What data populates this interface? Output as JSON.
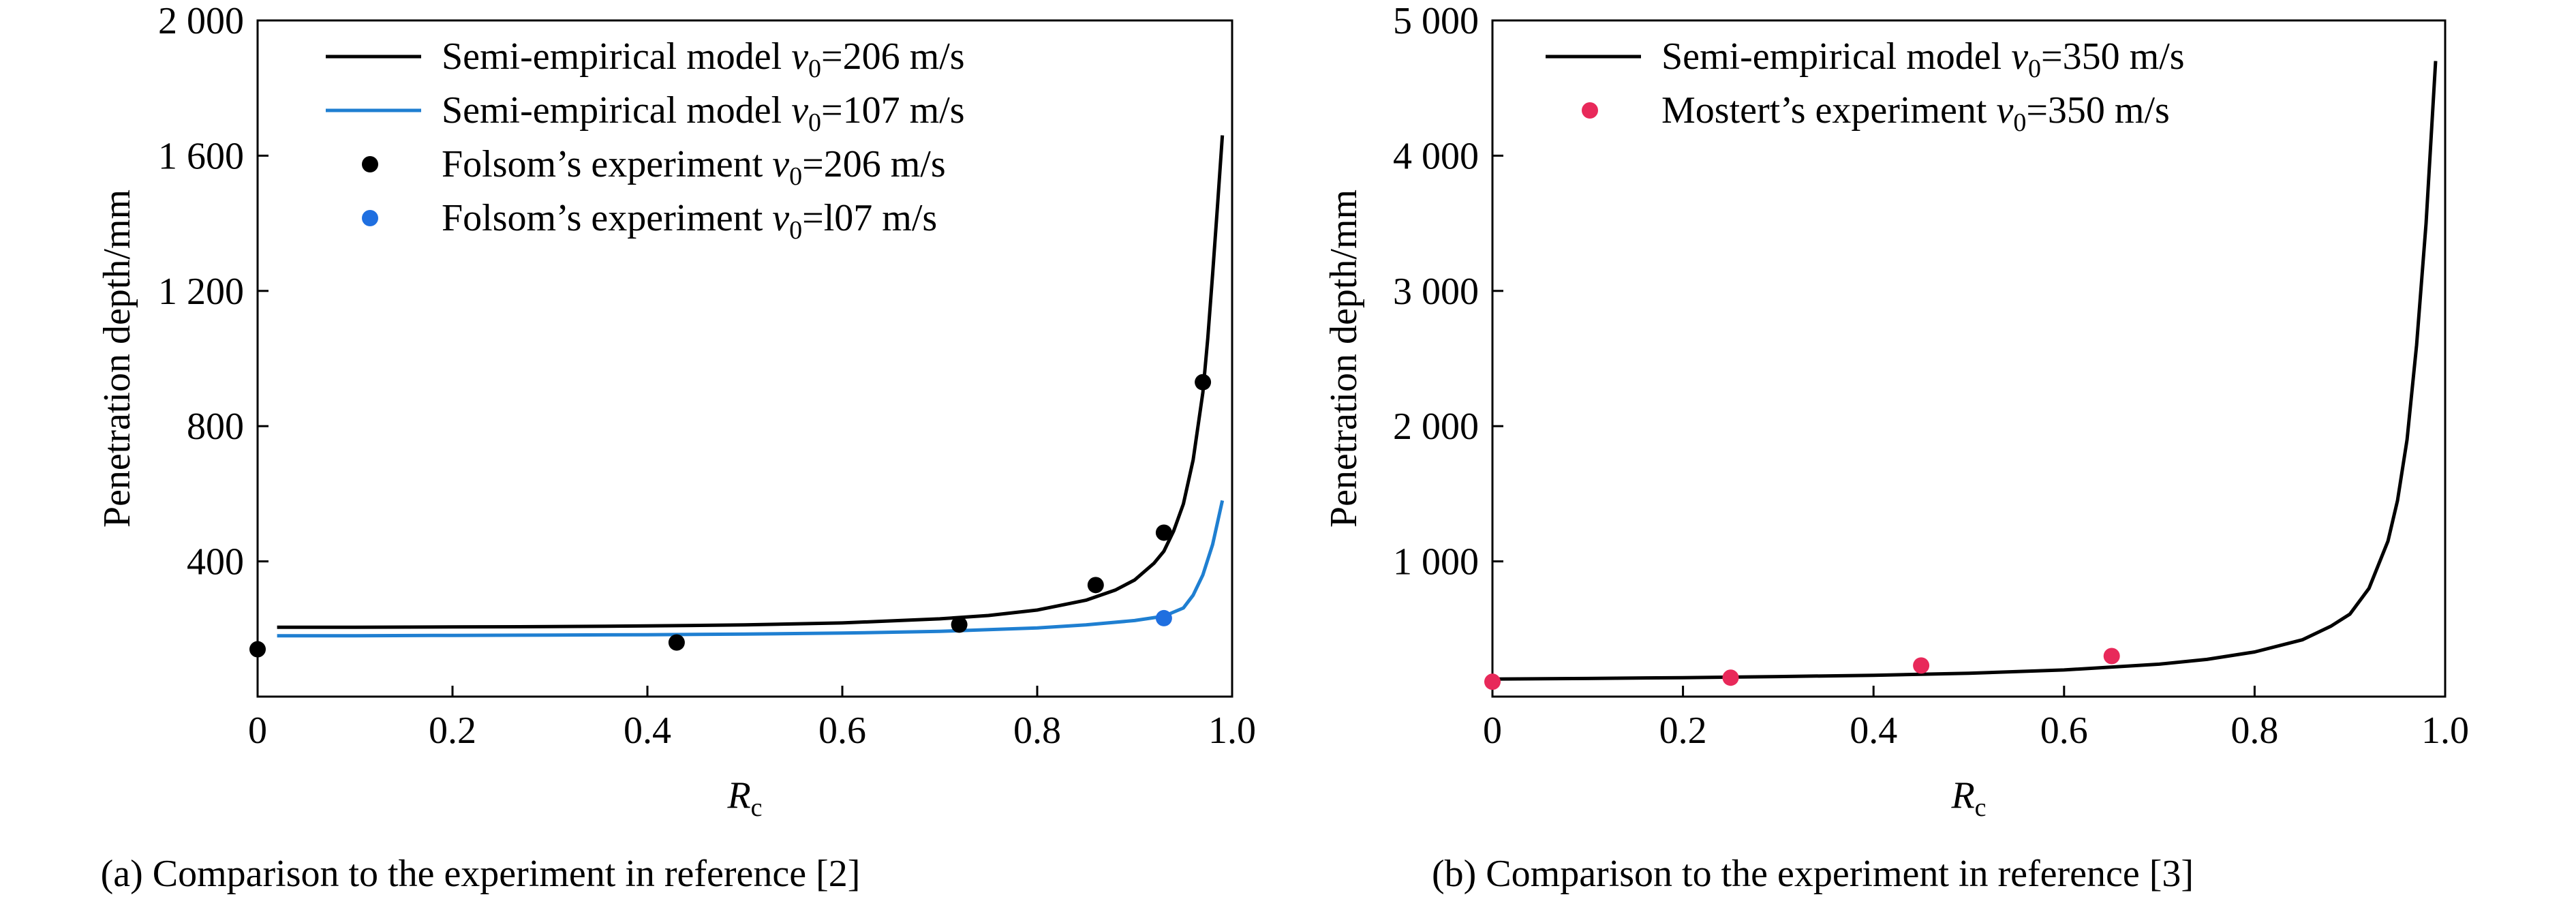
{
  "chart_data": [
    {
      "type": "line",
      "caption": "(a) Comparison to the experiment in reference [2]",
      "xlabel_main": "R",
      "xlabel_sub": "c",
      "ylabel": "Penetration depth/mm",
      "xlim": [
        0,
        1.0
      ],
      "ylim": [
        0,
        2000
      ],
      "xticks": [
        0,
        0.2,
        0.4,
        0.6,
        0.8,
        1.0
      ],
      "xtick_labels": [
        "0",
        "0.2",
        "0.4",
        "0.6",
        "0.8",
        "1.0"
      ],
      "yticks": [
        400,
        800,
        1200,
        1600,
        2000
      ],
      "ytick_labels": [
        "400",
        "800",
        "1 200",
        "1 600",
        "2 000"
      ],
      "grid": false,
      "legend_position": "top-left",
      "series": [
        {
          "kind": "line",
          "color": "#000000",
          "legend": {
            "pre": "Semi-empirical model ",
            "var": "v",
            "sub": "0",
            "post": "=206 m/s"
          },
          "points": [
            [
              0.02,
              205
            ],
            [
              0.1,
              205
            ],
            [
              0.2,
              206
            ],
            [
              0.3,
              207
            ],
            [
              0.4,
              209
            ],
            [
              0.5,
              212
            ],
            [
              0.6,
              218
            ],
            [
              0.7,
              230
            ],
            [
              0.75,
              240
            ],
            [
              0.8,
              256
            ],
            [
              0.85,
              285
            ],
            [
              0.88,
              315
            ],
            [
              0.9,
              345
            ],
            [
              0.92,
              395
            ],
            [
              0.93,
              430
            ],
            [
              0.94,
              490
            ],
            [
              0.95,
              570
            ],
            [
              0.96,
              700
            ],
            [
              0.97,
              900
            ],
            [
              0.975,
              1060
            ],
            [
              0.98,
              1250
            ],
            [
              0.985,
              1450
            ],
            [
              0.99,
              1660
            ]
          ]
        },
        {
          "kind": "line",
          "color": "#1f7fd1",
          "legend": {
            "pre": "Semi-empirical model ",
            "var": "v",
            "sub": "0",
            "post": "=107 m/s"
          },
          "points": [
            [
              0.02,
              180
            ],
            [
              0.1,
              180
            ],
            [
              0.2,
              181
            ],
            [
              0.3,
              182
            ],
            [
              0.4,
              183
            ],
            [
              0.5,
              185
            ],
            [
              0.6,
              188
            ],
            [
              0.7,
              193
            ],
            [
              0.8,
              203
            ],
            [
              0.85,
              212
            ],
            [
              0.9,
              225
            ],
            [
              0.93,
              238
            ],
            [
              0.95,
              262
            ],
            [
              0.96,
              300
            ],
            [
              0.97,
              360
            ],
            [
              0.98,
              450
            ],
            [
              0.99,
              580
            ]
          ]
        },
        {
          "kind": "scatter",
          "color": "#000000",
          "legend": {
            "pre": "Folsom’s experiment ",
            "var": "v",
            "sub": "0",
            "post": "=206 m/s"
          },
          "points": [
            [
              0.0,
              140
            ],
            [
              0.43,
              160
            ],
            [
              0.72,
              213
            ],
            [
              0.86,
              330
            ],
            [
              0.93,
              485
            ],
            [
              0.97,
              930
            ]
          ]
        },
        {
          "kind": "scatter",
          "color": "#1f6fe0",
          "legend": {
            "pre": "Folsom’s experiment ",
            "var": "v",
            "sub": "0",
            "post": "=l07 m/s"
          },
          "points": [
            [
              0.93,
              232
            ]
          ]
        }
      ]
    },
    {
      "type": "line",
      "caption": "(b) Comparison to the experiment in reference [3]",
      "xlabel_main": "R",
      "xlabel_sub": "c",
      "ylabel": "Penetration depth/mm",
      "xlim": [
        0,
        1.0
      ],
      "ylim": [
        0,
        5000
      ],
      "xticks": [
        0,
        0.2,
        0.4,
        0.6,
        0.8,
        1.0
      ],
      "xtick_labels": [
        "0",
        "0.2",
        "0.4",
        "0.6",
        "0.8",
        "1.0"
      ],
      "yticks": [
        1000,
        2000,
        3000,
        4000,
        5000
      ],
      "ytick_labels": [
        "1 000",
        "2 000",
        "3 000",
        "4 000",
        "5 000"
      ],
      "grid": false,
      "legend_position": "top-left",
      "series": [
        {
          "kind": "line",
          "color": "#000000",
          "legend": {
            "pre": "Semi-empirical model ",
            "var": "v",
            "sub": "0",
            "post": "=350 m/s"
          },
          "points": [
            [
              0.0,
              130
            ],
            [
              0.1,
              134
            ],
            [
              0.2,
              140
            ],
            [
              0.3,
              148
            ],
            [
              0.4,
              158
            ],
            [
              0.5,
              173
            ],
            [
              0.6,
              197
            ],
            [
              0.7,
              240
            ],
            [
              0.75,
              275
            ],
            [
              0.8,
              330
            ],
            [
              0.85,
              420
            ],
            [
              0.88,
              520
            ],
            [
              0.9,
              610
            ],
            [
              0.92,
              800
            ],
            [
              0.94,
              1150
            ],
            [
              0.95,
              1450
            ],
            [
              0.96,
              1900
            ],
            [
              0.97,
              2600
            ],
            [
              0.98,
              3500
            ],
            [
              0.99,
              4700
            ]
          ]
        },
        {
          "kind": "scatter",
          "color": "#e8295a",
          "legend": {
            "pre": "Mostert’s experiment ",
            "var": "v",
            "sub": "0",
            "post": "=350 m/s"
          },
          "points": [
            [
              0.0,
              110
            ],
            [
              0.25,
              140
            ],
            [
              0.45,
              230
            ],
            [
              0.65,
              300
            ]
          ]
        }
      ]
    }
  ]
}
